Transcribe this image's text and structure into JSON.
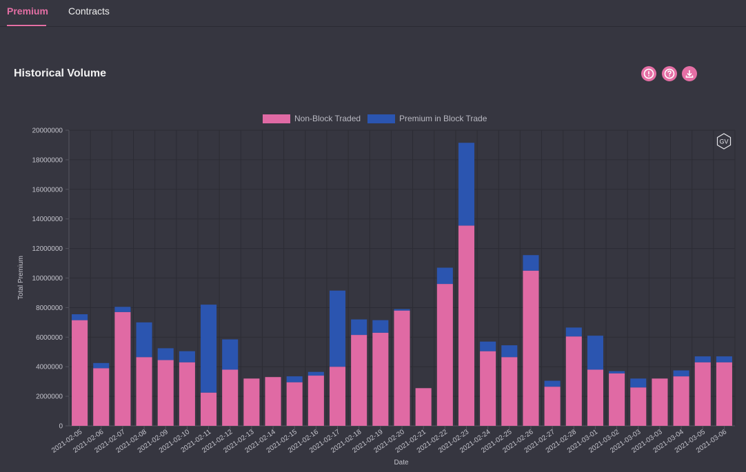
{
  "tabs": [
    {
      "label": "Premium",
      "active": true
    },
    {
      "label": "Contracts",
      "active": false
    }
  ],
  "panel": {
    "title": "Historical Volume",
    "icons": [
      "alert-icon",
      "help-icon",
      "download-icon"
    ],
    "badge": "GV"
  },
  "colors": {
    "accent": "#e56fa5",
    "non_block": "#e06aa4",
    "block": "#2b55b0",
    "background": "#363640"
  },
  "chart_data": {
    "type": "bar",
    "stacked": true,
    "xlabel": "Date",
    "ylabel": "Total Premium",
    "ylim": [
      0,
      20000000
    ],
    "yticks": [
      "0",
      "2000000",
      "4000000",
      "6000000",
      "8000000",
      "10000000",
      "12000000",
      "14000000",
      "16000000",
      "18000000",
      "20000000"
    ],
    "legend_position": "top-center",
    "grid": true,
    "categories": [
      "2021-02-05",
      "2021-02-06",
      "2021-02-07",
      "2021-02-08",
      "2021-02-09",
      "2021-02-10",
      "2021-02-11",
      "2021-02-12",
      "2021-02-13",
      "2021-02-14",
      "2021-02-15",
      "2021-02-16",
      "2021-02-17",
      "2021-02-18",
      "2021-02-19",
      "2021-02-20",
      "2021-02-21",
      "2021-02-22",
      "2021-02-23",
      "2021-02-24",
      "2021-02-25",
      "2021-02-26",
      "2021-02-27",
      "2021-02-28",
      "2021-03-01",
      "2021-03-02",
      "2021-03-03",
      "2021-03-03",
      "2021-03-04",
      "2021-03-05",
      "2021-03-06"
    ],
    "series": [
      {
        "name": "Non-Block Traded",
        "values": [
          7150000,
          3900000,
          7700000,
          4650000,
          4450000,
          4300000,
          2250000,
          3800000,
          3200000,
          3300000,
          2950000,
          3400000,
          4000000,
          6150000,
          6300000,
          7800000,
          2550000,
          9600000,
          13550000,
          5050000,
          4650000,
          10500000,
          2650000,
          6050000,
          3800000,
          3550000,
          2600000,
          3200000,
          3350000,
          4300000,
          4300000
        ]
      },
      {
        "name": "Premium in Block Trade",
        "values": [
          400000,
          350000,
          350000,
          2350000,
          800000,
          750000,
          5950000,
          2050000,
          0,
          0,
          400000,
          250000,
          5150000,
          1050000,
          850000,
          100000,
          0,
          1100000,
          5600000,
          650000,
          800000,
          1050000,
          400000,
          600000,
          2300000,
          150000,
          600000,
          0,
          400000,
          400000,
          400000
        ]
      }
    ]
  }
}
